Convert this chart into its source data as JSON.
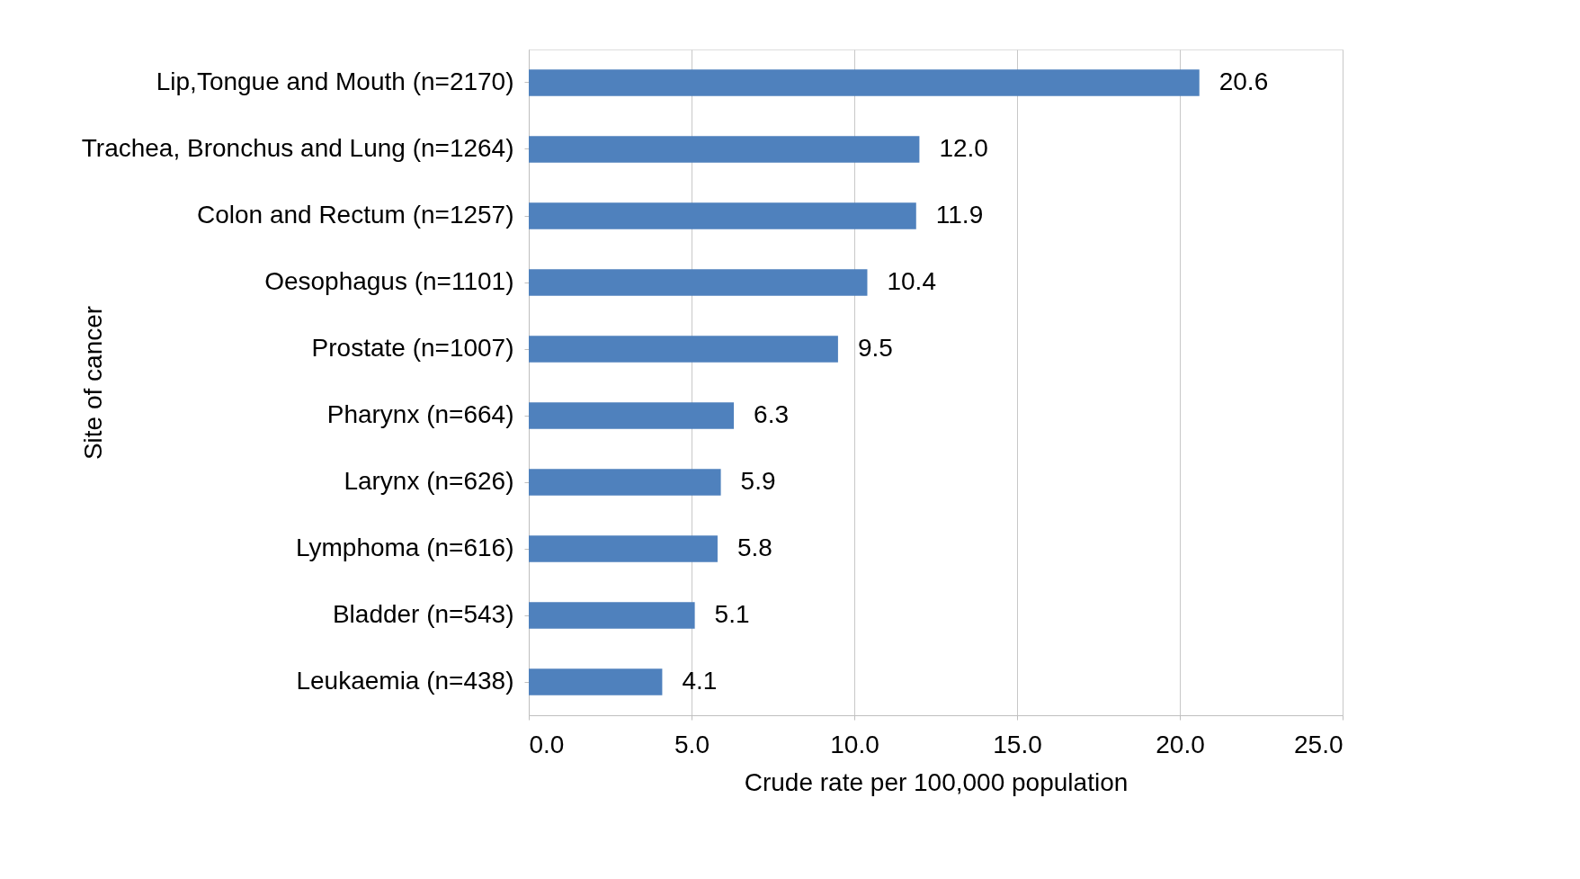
{
  "chart_data": {
    "type": "bar",
    "orientation": "horizontal",
    "xlabel": "Crude rate per 100,000 population",
    "ylabel": "Site of cancer",
    "categories": [
      "Lip,Tongue and Mouth (n=2170)",
      "Trachea, Bronchus and Lung (n=1264)",
      "Colon and Rectum (n=1257)",
      "Oesophagus (n=1101)",
      "Prostate (n=1007)",
      "Pharynx (n=664)",
      "Larynx (n=626)",
      "Lymphoma (n=616)",
      "Bladder (n=543)",
      "Leukaemia (n=438)"
    ],
    "values": [
      20.6,
      12.0,
      11.9,
      10.4,
      9.5,
      6.3,
      5.9,
      5.8,
      5.1,
      4.1
    ],
    "value_labels": [
      "20.6",
      "12.0",
      "11.9",
      "10.4",
      "9.5",
      "6.3",
      "5.9",
      "5.8",
      "5.1",
      "4.1"
    ],
    "color": "#4f81bd",
    "xlim": [
      0,
      25
    ],
    "xticks": [
      {
        "value": 0,
        "label": "0.0"
      },
      {
        "value": 5,
        "label": "5.0"
      },
      {
        "value": 10,
        "label": "10.0"
      },
      {
        "value": 15,
        "label": "15.0"
      },
      {
        "value": 20,
        "label": "20.0"
      },
      {
        "value": 25,
        "label": "25.0"
      }
    ],
    "grid": "x"
  }
}
